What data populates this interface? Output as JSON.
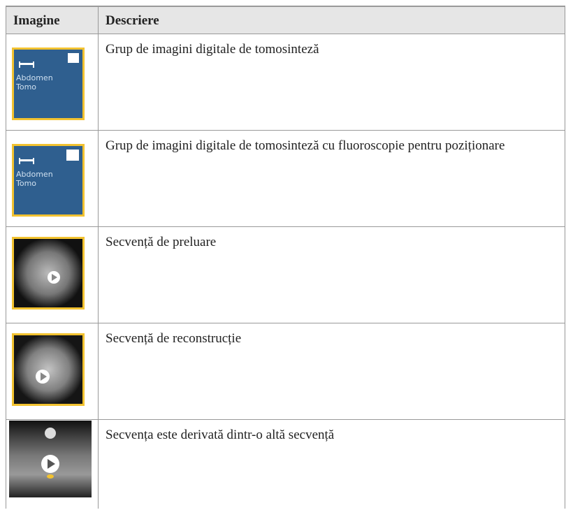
{
  "table": {
    "header": [
      "Imagine",
      "Descriere"
    ],
    "rows": [
      {
        "thumbnail_label": [
          "Abdomen",
          "Tomo"
        ],
        "description": "Grup de imagini digitale de tomosinteză"
      },
      {
        "thumbnail_label": [
          "Abdomen",
          "Tomo"
        ],
        "description": "Grup de imagini digitale de tomosinteză cu fluoroscopie pentru poziționare"
      },
      {
        "description": "Secvență de preluare"
      },
      {
        "description": "Secvență de reconstrucție"
      },
      {
        "description": "Secvența este derivată dintr-o altă secvență"
      }
    ]
  }
}
